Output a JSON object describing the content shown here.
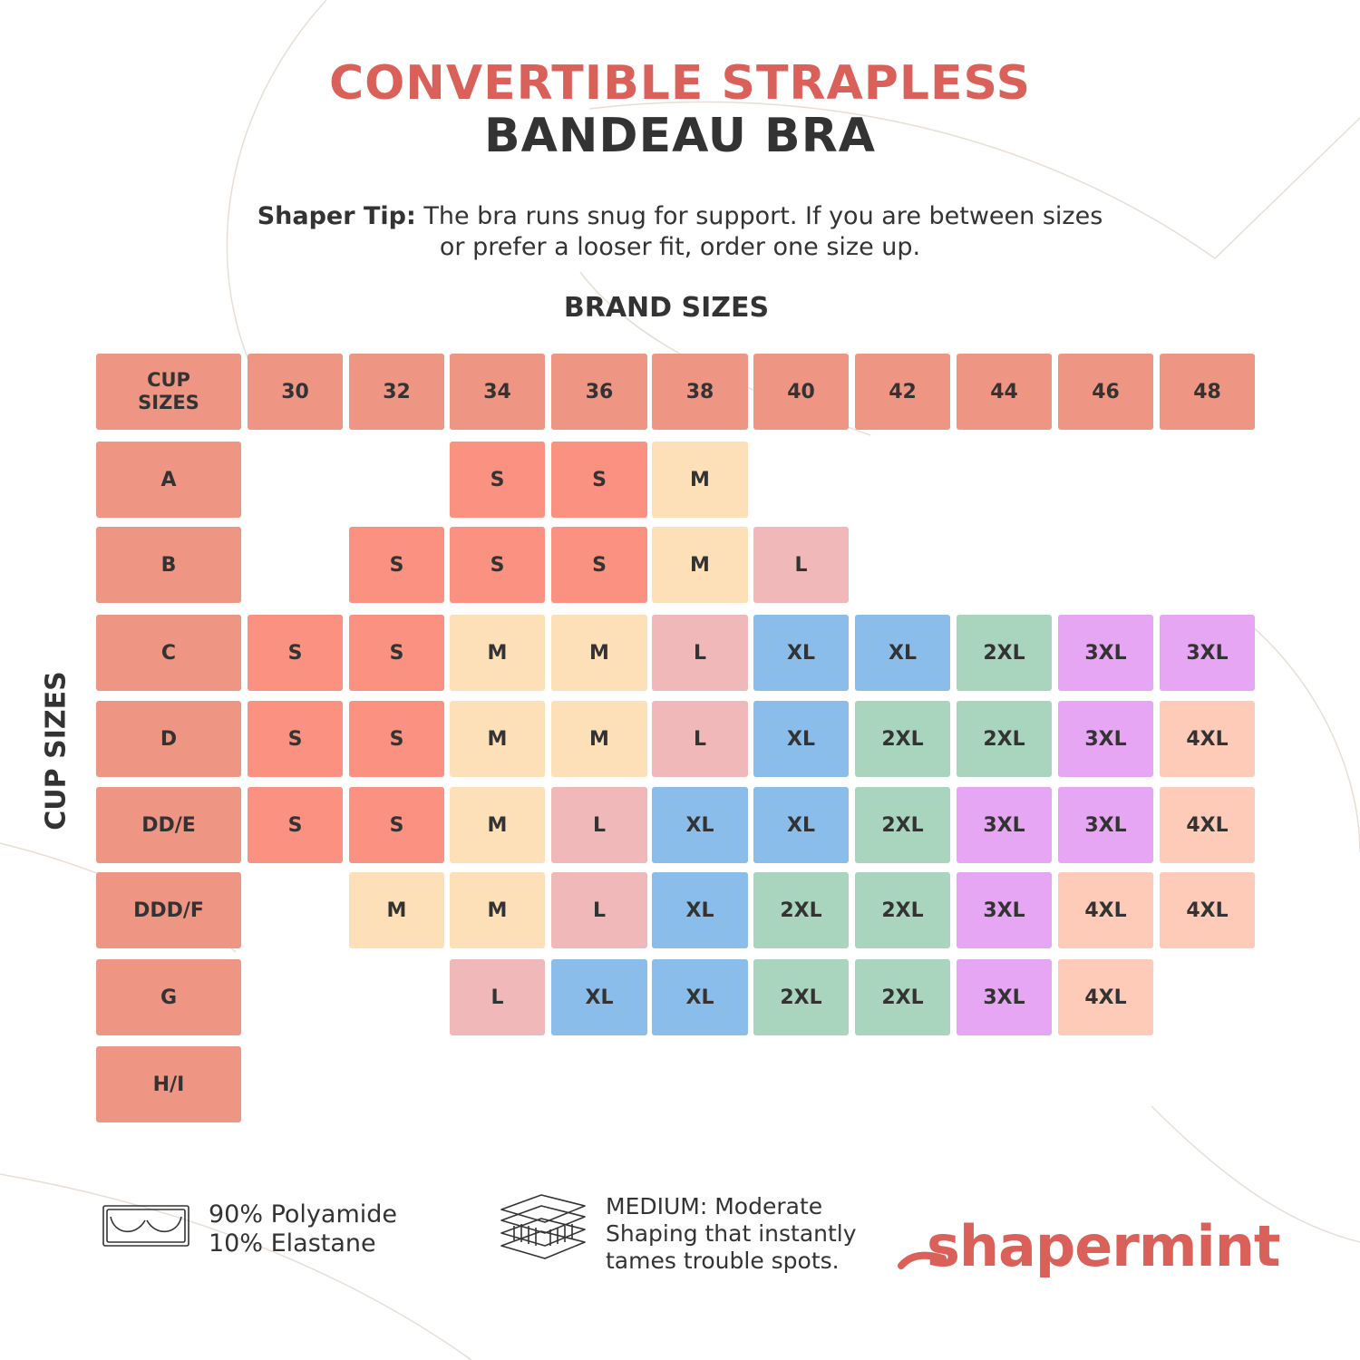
{
  "title": {
    "line1": "CONVERTIBLE STRAPLESS",
    "line2": "BANDEAU BRA"
  },
  "tip": {
    "label": "Shaper Tip:",
    "line1": " The bra runs snug for support. If you are between sizes",
    "line2": "or prefer a looser fit, order one size up."
  },
  "brand_sizes_label": "BRAND SIZES",
  "cup_sizes_label": "CUP SIZES",
  "table": {
    "corner_label": "CUP\nSIZES",
    "band_sizes": [
      "30",
      "32",
      "34",
      "36",
      "38",
      "40",
      "42",
      "44",
      "46",
      "48"
    ],
    "cup_sizes": [
      "A",
      "B",
      "C",
      "D",
      "DD/E",
      "DDD/F",
      "G",
      "H/I"
    ],
    "grid": [
      [
        "",
        "",
        "S",
        "S",
        "M",
        "",
        "",
        "",
        "",
        ""
      ],
      [
        "",
        "S",
        "S",
        "S",
        "M",
        "L",
        "",
        "",
        "",
        ""
      ],
      [
        "S",
        "S",
        "M",
        "M",
        "L",
        "XL",
        "XL",
        "2XL",
        "3XL",
        "3XL"
      ],
      [
        "S",
        "S",
        "M",
        "M",
        "L",
        "XL",
        "2XL",
        "2XL",
        "3XL",
        "4XL"
      ],
      [
        "S",
        "S",
        "M",
        "L",
        "XL",
        "XL",
        "2XL",
        "3XL",
        "3XL",
        "4XL"
      ],
      [
        "",
        "M",
        "M",
        "L",
        "XL",
        "2XL",
        "2XL",
        "3XL",
        "4XL",
        "4XL"
      ],
      [
        "",
        "",
        "L",
        "XL",
        "XL",
        "2XL",
        "2XL",
        "3XL",
        "4XL",
        ""
      ],
      [
        "",
        "",
        "",
        "",
        "",
        "",
        "",
        "",
        "",
        ""
      ]
    ],
    "size_colors": {
      "S": "#fb9181",
      "M": "#fde0b7",
      "L": "#f0b8b8",
      "XL": "#8bbdea",
      "2XL": "#a9d5bf",
      "3XL": "#e6a6f3",
      "4XL": "#fdcbb7"
    },
    "header_color": "#ee9584"
  },
  "footer": {
    "material_line1": "90% Polyamide",
    "material_line2": "10% Elastane",
    "material_icon": "bra-outline-icon",
    "shaping_line1": "MEDIUM: Moderate",
    "shaping_line2": "Shaping that instantly",
    "shaping_line3": "tames trouble spots.",
    "shaping_icon": "fabric-layers-icon",
    "brand": "shapermint"
  }
}
